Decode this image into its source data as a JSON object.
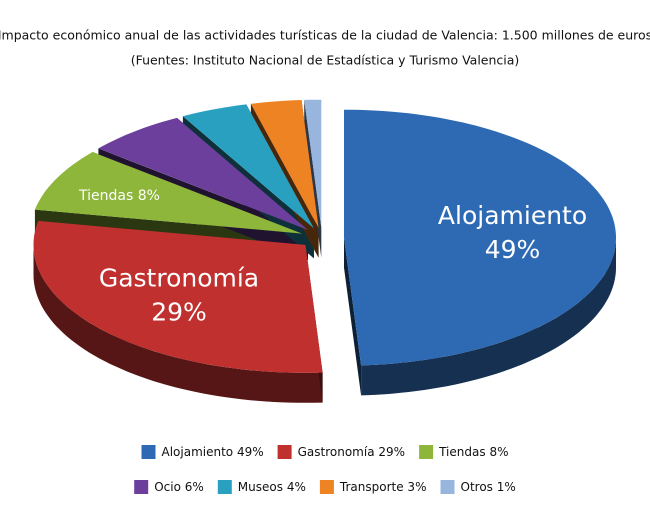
{
  "chart_data": {
    "type": "pie3d",
    "title": "Impacto económico anual de las actividades turísticas de la ciudad de Valencia: 1.500 millones de euros",
    "subtitle": "(Fuentes: Instituto Nacional de Estadística y Turismo Valencia)",
    "categories": [
      "Alojamiento",
      "Gastronomía",
      "Tiendas",
      "Ocio",
      "Museos",
      "Transporte",
      "Otros"
    ],
    "values": [
      49,
      29,
      8,
      6,
      4,
      3,
      1
    ],
    "value_labels": [
      "49%",
      "29%",
      "8%",
      "6%",
      "4%",
      "3%",
      "1%"
    ],
    "colors": [
      "#2e6ab4",
      "#c0302e",
      "#8db63a",
      "#6b3f9b",
      "#2aa0c0",
      "#ee8324",
      "#97b5dd"
    ],
    "legend": "bottom"
  }
}
